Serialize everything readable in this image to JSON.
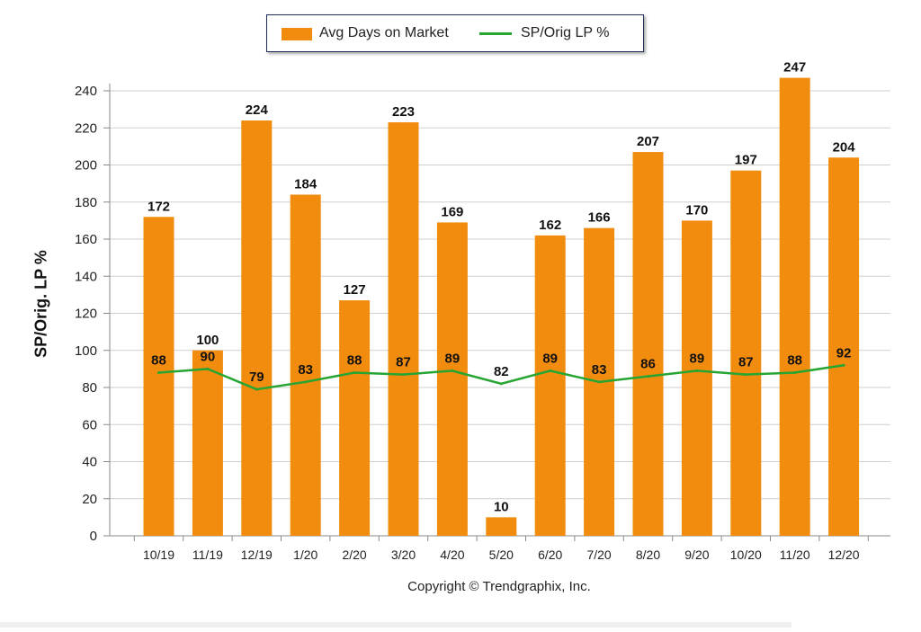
{
  "legend": {
    "bar_label": "Avg Days on Market",
    "line_label": "SP/Orig LP %"
  },
  "axis": {
    "ylabel": "SP/Orig. LP %"
  },
  "footer": {
    "credit": "Copyright © Trendgraphix, Inc."
  },
  "colors": {
    "bar": "#f28c0f",
    "line": "#27a532",
    "grid": "#cfcfcf",
    "axis": "#888888",
    "label": "#111111"
  },
  "chart_data": {
    "type": "bar",
    "categories": [
      "10/19",
      "11/19",
      "12/19",
      "1/20",
      "2/20",
      "3/20",
      "4/20",
      "5/20",
      "6/20",
      "7/20",
      "8/20",
      "9/20",
      "10/20",
      "11/20",
      "12/20"
    ],
    "series": [
      {
        "name": "Avg Days on Market",
        "type": "bar",
        "values": [
          172,
          100,
          224,
          184,
          127,
          223,
          169,
          10,
          162,
          166,
          207,
          170,
          197,
          247,
          204
        ]
      },
      {
        "name": "SP/Orig LP %",
        "type": "line",
        "values": [
          88,
          90,
          79,
          83,
          88,
          87,
          89,
          82,
          89,
          83,
          86,
          89,
          87,
          88,
          92
        ]
      }
    ],
    "yticks": [
      0,
      20,
      40,
      60,
      80,
      100,
      120,
      140,
      160,
      180,
      200,
      220,
      240
    ],
    "ylim": [
      0,
      250
    ],
    "ylabel": "SP/Orig. LP %",
    "xlabel": "",
    "grid": true,
    "legend_position": "top-center"
  }
}
